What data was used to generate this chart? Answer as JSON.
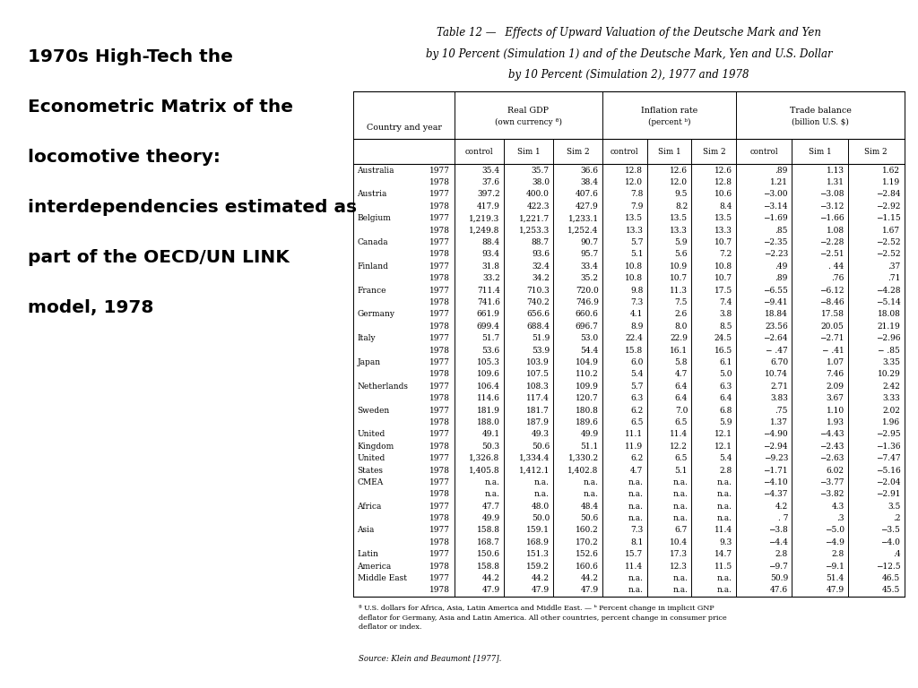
{
  "title_left_lines": [
    "1970s High-Tech the",
    "Econometric Matrix of the",
    "locomotive theory:",
    "interdependencies estimated as",
    "part of the OECD/UN LINK",
    "model, 1978"
  ],
  "rows": [
    [
      "Australia",
      "1977",
      "35.4",
      "35.7",
      "36.6",
      "12.8",
      "12.6",
      "12.6",
      ".89",
      "1.13",
      "1.62"
    ],
    [
      "",
      "1978",
      "37.6",
      "38.0",
      "38.4",
      "12.0",
      "12.0",
      "12.8",
      "1.21",
      "1.31",
      "1.19"
    ],
    [
      "Austria",
      "1977",
      "397.2",
      "400.0",
      "407.6",
      "7.8",
      "9.5",
      "10.6",
      "−3.00",
      "−3.08",
      "−2.84"
    ],
    [
      "",
      "1978",
      "417.9",
      "422.3",
      "427.9",
      "7.9",
      "8.2",
      "8.4",
      "−3.14",
      "−3.12",
      "−2.92"
    ],
    [
      "Belgium",
      "1977",
      "1,219.3",
      "1,221.7",
      "1,233.1",
      "13.5",
      "13.5",
      "13.5",
      "−1.69",
      "−1.66",
      "−1.15"
    ],
    [
      "",
      "1978",
      "1,249.8",
      "1,253.3",
      "1,252.4",
      "13.3",
      "13.3",
      "13.3",
      ".85",
      "1.08",
      "1.67"
    ],
    [
      "Canada",
      "1977",
      "88.4",
      "88.7",
      "90.7",
      "5.7",
      "5.9",
      "10.7",
      "−2.35",
      "−2.28",
      "−2.52"
    ],
    [
      "",
      "1978",
      "93.4",
      "93.6",
      "95.7",
      "5.1",
      "5.6",
      "7.2",
      "−2.23",
      "−2.51",
      "−2.52"
    ],
    [
      "Finland",
      "1977",
      "31.8",
      "32.4",
      "33.4",
      "10.8",
      "10.9",
      "10.8",
      ".49",
      ". 44",
      ".37"
    ],
    [
      "",
      "1978",
      "33.2",
      "34.2",
      "35.2",
      "10.8",
      "10.7",
      "10.7",
      ".89",
      ".76",
      ".71"
    ],
    [
      "France",
      "1977",
      "711.4",
      "710.3",
      "720.0",
      "9.8",
      "11.3",
      "17.5",
      "−6.55",
      "−6.12",
      "−4.28"
    ],
    [
      "",
      "1978",
      "741.6",
      "740.2",
      "746.9",
      "7.3",
      "7.5",
      "7.4",
      "−9.41",
      "−8.46",
      "−5.14"
    ],
    [
      "Germany",
      "1977",
      "661.9",
      "656.6",
      "660.6",
      "4.1",
      "2.6",
      "3.8",
      "18.84",
      "17.58",
      "18.08"
    ],
    [
      "",
      "1978",
      "699.4",
      "688.4",
      "696.7",
      "8.9",
      "8.0",
      "8.5",
      "23.56",
      "20.05",
      "21.19"
    ],
    [
      "Italy",
      "1977",
      "51.7",
      "51.9",
      "53.0",
      "22.4",
      "22.9",
      "24.5",
      "−2.64",
      "−2.71",
      "−2.96"
    ],
    [
      "",
      "1978",
      "53.6",
      "53.9",
      "54.4",
      "15.8",
      "16.1",
      "16.5",
      "− .47",
      "− .41",
      "− .85"
    ],
    [
      "Japan",
      "1977",
      "105.3",
      "103.9",
      "104.9",
      "6.0",
      "5.8",
      "6.1",
      "6.70",
      "1.07",
      "3.35"
    ],
    [
      "",
      "1978",
      "109.6",
      "107.5",
      "110.2",
      "5.4",
      "4.7",
      "5.0",
      "10.74",
      "7.46",
      "10.29"
    ],
    [
      "Netherlands",
      "1977",
      "106.4",
      "108.3",
      "109.9",
      "5.7",
      "6.4",
      "6.3",
      "2.71",
      "2.09",
      "2.42"
    ],
    [
      "",
      "1978",
      "114.6",
      "117.4",
      "120.7",
      "6.3",
      "6.4",
      "6.4",
      "3.83",
      "3.67",
      "3.33"
    ],
    [
      "Sweden",
      "1977",
      "181.9",
      "181.7",
      "180.8",
      "6.2",
      "7.0",
      "6.8",
      ".75",
      "1.10",
      "2.02"
    ],
    [
      "",
      "1978",
      "188.0",
      "187.9",
      "189.6",
      "6.5",
      "6.5",
      "5.9",
      "1.37",
      "1.93",
      "1.96"
    ],
    [
      "United",
      "1977",
      "49.1",
      "49.3",
      "49.9",
      "11.1",
      "11.4",
      "12.1",
      "−4.90",
      "−4.43",
      "−2.95"
    ],
    [
      "Kingdom",
      "1978",
      "50.3",
      "50.6",
      "51.1",
      "11.9",
      "12.2",
      "12.1",
      "−2.94",
      "−2.43",
      "−1.36"
    ],
    [
      "United",
      "1977",
      "1,326.8",
      "1,334.4",
      "1,330.2",
      "6.2",
      "6.5",
      "5.4",
      "−9.23",
      "−2.63",
      "−7.47"
    ],
    [
      "States",
      "1978",
      "1,405.8",
      "1,412.1",
      "1,402.8",
      "4.7",
      "5.1",
      "2.8",
      "−1.71",
      "6.02",
      "−5.16"
    ],
    [
      "CMEA",
      "1977",
      "n.a.",
      "n.a.",
      "n.a.",
      "n.a.",
      "n.a.",
      "n.a.",
      "−4.10",
      "−3.77",
      "−2.04"
    ],
    [
      "",
      "1978",
      "n.a.",
      "n.a.",
      "n.a.",
      "n.a.",
      "n.a.",
      "n.a.",
      "−4.37",
      "−3.82",
      "−2.91"
    ],
    [
      "Africa",
      "1977",
      "47.7",
      "48.0",
      "48.4",
      "n.a.",
      "n.a.",
      "n.a.",
      "4.2",
      "4.3",
      "3.5"
    ],
    [
      "",
      "1978",
      "49.9",
      "50.0",
      "50.6",
      "n.a.",
      "n.a.",
      "n.a.",
      ". 7",
      ".3",
      ".2"
    ],
    [
      "Asia",
      "1977",
      "158.8",
      "159.1",
      "160.2",
      "7.3",
      "6.7",
      "11.4",
      "−3.8",
      "−5.0",
      "−3.5"
    ],
    [
      "",
      "1978",
      "168.7",
      "168.9",
      "170.2",
      "8.1",
      "10.4",
      "9.3",
      "−4.4",
      "−4.9",
      "−4.0"
    ],
    [
      "Latin",
      "1977",
      "150.6",
      "151.3",
      "152.6",
      "15.7",
      "17.3",
      "14.7",
      "2.8",
      "2.8",
      ".4"
    ],
    [
      "America",
      "1978",
      "158.8",
      "159.2",
      "160.6",
      "11.4",
      "12.3",
      "11.5",
      "−9.7",
      "−9.1",
      "−12.5"
    ],
    [
      "Middle East",
      "1977",
      "44.2",
      "44.2",
      "44.2",
      "n.a.",
      "n.a.",
      "n.a.",
      "50.9",
      "51.4",
      "46.5"
    ],
    [
      "",
      "1978",
      "47.9",
      "47.9",
      "47.9",
      "n.a.",
      "n.a.",
      "n.a.",
      "47.6",
      "47.9",
      "45.5"
    ]
  ],
  "footnote": "ª U.S. dollars for Africa, Asia, Latin America and Middle East. — ᵇ Percent change in implicit GNP\ndeflator for Germany, Asia and Latin America. All other countries, percent change in consumer price\ndeflator or index.",
  "source": "Source: Klein and Beaumont [1977].",
  "bg_color": "#ffffff"
}
